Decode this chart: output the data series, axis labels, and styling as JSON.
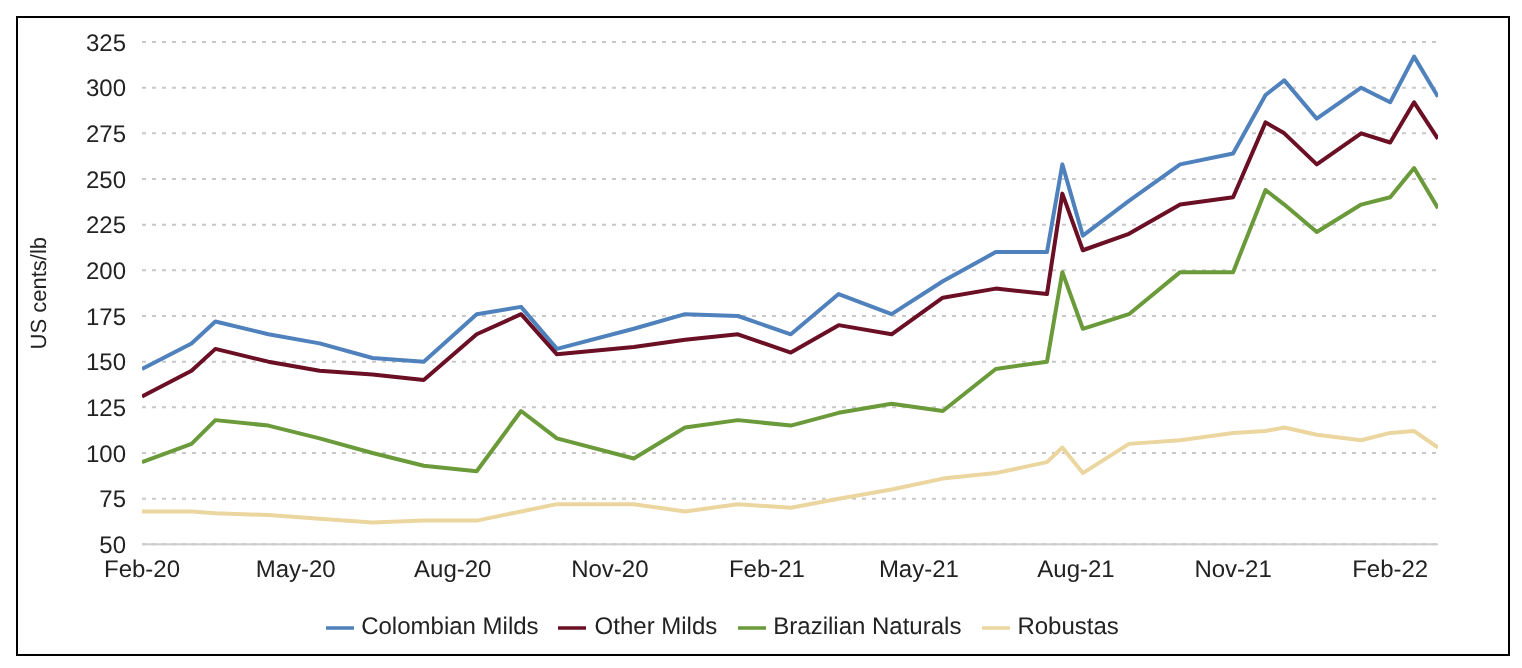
{
  "chart_data": {
    "type": "line",
    "ylabel": "US cents/lb",
    "x": [
      "2020-02-01",
      "2020-03-01",
      "2020-03-15",
      "2020-04-15",
      "2020-05-15",
      "2020-06-15",
      "2020-07-15",
      "2020-08-15",
      "2020-09-10",
      "2020-10-01",
      "2020-11-15",
      "2020-12-15",
      "2021-01-15",
      "2021-02-15",
      "2021-03-15",
      "2021-04-15",
      "2021-05-15",
      "2021-06-15",
      "2021-07-15",
      "2021-07-24",
      "2021-08-05",
      "2021-09-01",
      "2021-10-01",
      "2021-11-01",
      "2021-11-20",
      "2021-12-01",
      "2021-12-20",
      "2022-01-15",
      "2022-02-01",
      "2022-02-15",
      "2022-03-01"
    ],
    "series": [
      {
        "name": "Colombian Milds",
        "color": "#4f81bd",
        "values": [
          146,
          160,
          172,
          165,
          160,
          152,
          150,
          176,
          180,
          157,
          168,
          176,
          175,
          165,
          187,
          176,
          194,
          210,
          210,
          258,
          219,
          238,
          258,
          264,
          296,
          304,
          283,
          300,
          292,
          317,
          295
        ]
      },
      {
        "name": "Other Milds",
        "color": "#6b0f24",
        "values": [
          131,
          145,
          157,
          150,
          145,
          143,
          140,
          165,
          176,
          154,
          158,
          162,
          165,
          155,
          170,
          165,
          185,
          190,
          187,
          242,
          211,
          220,
          236,
          240,
          281,
          275,
          258,
          275,
          270,
          292,
          272
        ]
      },
      {
        "name": "Brazilian Naturals",
        "color": "#6a9a3a",
        "values": [
          95,
          105,
          118,
          115,
          108,
          100,
          93,
          90,
          123,
          108,
          97,
          114,
          118,
          115,
          122,
          127,
          123,
          146,
          150,
          199,
          168,
          176,
          199,
          199,
          244,
          236,
          221,
          236,
          240,
          256,
          234
        ]
      },
      {
        "name": "Robustas",
        "color": "#ecd6a0",
        "values": [
          68,
          68,
          67,
          66,
          64,
          62,
          63,
          63,
          68,
          72,
          72,
          68,
          72,
          70,
          75,
          80,
          86,
          89,
          95,
          103,
          89,
          105,
          107,
          111,
          112,
          114,
          110,
          107,
          111,
          112,
          103
        ]
      }
    ],
    "xlim": [
      "2020-02-01",
      "2022-03-01"
    ],
    "xticks": [
      {
        "value": "2020-02-01",
        "label": "Feb-20"
      },
      {
        "value": "2020-05-01",
        "label": "May-20"
      },
      {
        "value": "2020-08-01",
        "label": "Aug-20"
      },
      {
        "value": "2020-11-01",
        "label": "Nov-20"
      },
      {
        "value": "2021-02-01",
        "label": "Feb-21"
      },
      {
        "value": "2021-05-01",
        "label": "May-21"
      },
      {
        "value": "2021-08-01",
        "label": "Aug-21"
      },
      {
        "value": "2021-11-01",
        "label": "Nov-21"
      },
      {
        "value": "2022-02-01",
        "label": "Feb-22"
      }
    ],
    "ylim": [
      50,
      325
    ],
    "yticks": [
      50,
      75,
      100,
      125,
      150,
      175,
      200,
      225,
      250,
      275,
      300,
      325
    ],
    "grid": "y",
    "legend": "bottom",
    "marker": "none",
    "line_style": "solid"
  }
}
